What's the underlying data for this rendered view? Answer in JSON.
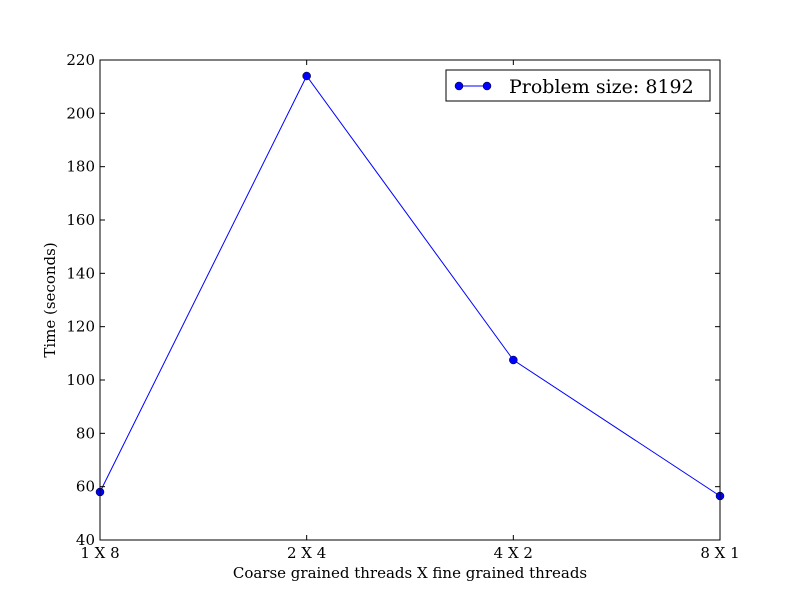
{
  "chart_data": {
    "type": "line",
    "title": "",
    "xlabel": "Coarse grained threads X fine grained threads",
    "ylabel": "Time (seconds)",
    "categories": [
      "1 X 8",
      "2 X 4",
      "4 X 2",
      "8 X 1"
    ],
    "ylim": [
      40,
      220
    ],
    "yticks": [
      40,
      60,
      80,
      100,
      120,
      140,
      160,
      180,
      200,
      220
    ],
    "grid": false,
    "legend_position": "top-right",
    "series": [
      {
        "name": "Problem size: 8192",
        "color": "#0000ff",
        "marker": "circle",
        "values": [
          58,
          214,
          107.5,
          56.5
        ]
      }
    ]
  }
}
